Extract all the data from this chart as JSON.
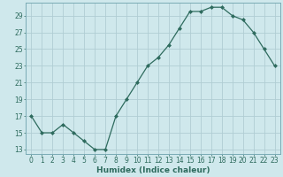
{
  "x": [
    0,
    1,
    2,
    3,
    4,
    5,
    6,
    7,
    8,
    9,
    10,
    11,
    12,
    13,
    14,
    15,
    16,
    17,
    18,
    19,
    20,
    21,
    22,
    23
  ],
  "y": [
    17,
    15,
    15,
    16,
    15,
    14,
    13,
    13,
    17,
    19,
    21,
    23,
    24,
    25.5,
    27.5,
    29.5,
    29.5,
    30,
    30,
    29,
    28.5,
    27,
    25,
    23
  ],
  "line_color": "#2e6b5e",
  "marker": "D",
  "marker_size": 2.0,
  "bg_color": "#cfe8ec",
  "grid_color": "#b0cdd4",
  "xlabel": "Humidex (Indice chaleur)",
  "yticks": [
    13,
    15,
    17,
    19,
    21,
    23,
    25,
    27,
    29
  ],
  "xtick_labels": [
    "0",
    "1",
    "2",
    "3",
    "4",
    "5",
    "6",
    "7",
    "8",
    "9",
    "10",
    "11",
    "12",
    "13",
    "14",
    "15",
    "16",
    "17",
    "18",
    "19",
    "20",
    "21",
    "22",
    "23"
  ],
  "ylim": [
    12.5,
    30.5
  ],
  "xlim": [
    -0.5,
    23.5
  ],
  "tick_fontsize": 5.5,
  "xlabel_fontsize": 6.5
}
